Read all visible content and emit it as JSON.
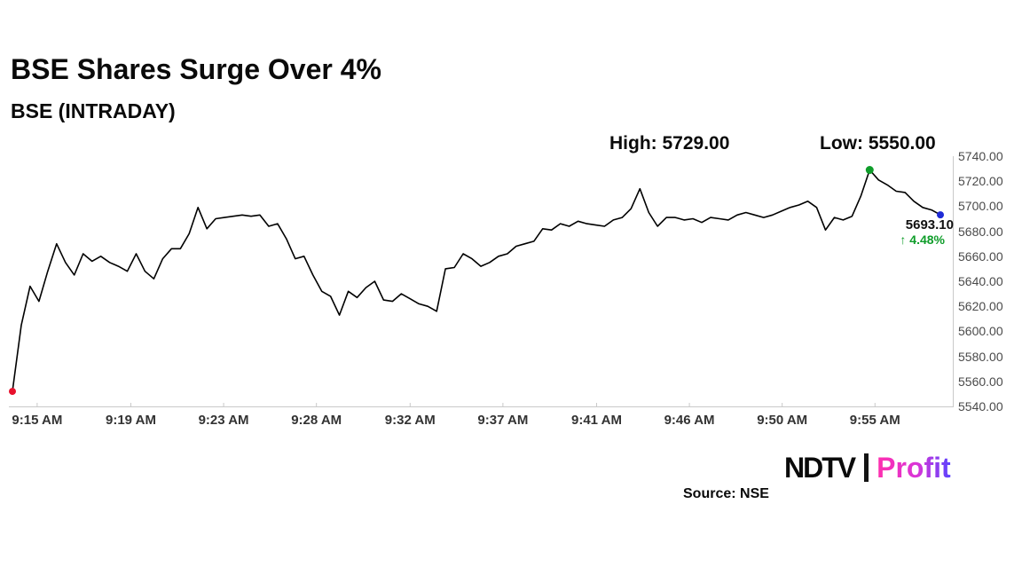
{
  "header": {
    "title": "BSE Shares Surge Over 4%",
    "subtitle": "BSE (INTRADAY)"
  },
  "annotations": {
    "high_label": "High: 5729.00",
    "low_label": "Low: 5550.00",
    "last_price": "5693.10",
    "change": "↑ 4.48%"
  },
  "footer": {
    "source": "Source: NSE",
    "brand_left": "NDTV",
    "brand_right": "Profit"
  },
  "colors": {
    "line": "#000000",
    "start_dot": "#e8112d",
    "high_dot": "#0f9d2a",
    "end_dot": "#1f2bd6",
    "change_green": "#0f9d2a",
    "axis": "#c9c9c9"
  },
  "chart_data": {
    "type": "line",
    "title": "BSE Shares Surge Over 4%",
    "subtitle": "BSE (INTRADAY)",
    "xlabel": "",
    "ylabel": "",
    "ylim": [
      5540,
      5740
    ],
    "grid": false,
    "legend": "none",
    "high": 5729.0,
    "low": 5550.0,
    "last": 5693.1,
    "change_pct": 4.48,
    "y_ticks": [
      "5740.00",
      "5720.00",
      "5700.00",
      "5680.00",
      "5660.00",
      "5640.00",
      "5620.00",
      "5600.00",
      "5580.00",
      "5560.00",
      "5540.00"
    ],
    "x_tick_labels": [
      "9:15 AM",
      "9:19 AM",
      "9:23 AM",
      "9:28 AM",
      "9:32 AM",
      "9:37 AM",
      "9:41 AM",
      "9:46 AM",
      "9:50 AM",
      "9:55 AM"
    ],
    "x_tick_pos": [
      2.8,
      13.4,
      23.9,
      34.4,
      45.0,
      55.5,
      66.1,
      76.6,
      87.1,
      97.6
    ],
    "values": [
      5552,
      5605,
      5636,
      5624,
      5648,
      5670,
      5655,
      5645,
      5662,
      5656,
      5660,
      5655,
      5652,
      5648,
      5662,
      5648,
      5642,
      5658,
      5666,
      5666,
      5678,
      5699,
      5682,
      5690,
      5691,
      5692,
      5693,
      5692,
      5693,
      5684,
      5686,
      5674,
      5658,
      5660,
      5645,
      5632,
      5628,
      5613,
      5632,
      5627,
      5635,
      5640,
      5625,
      5624,
      5630,
      5626,
      5622,
      5620,
      5616,
      5650,
      5651,
      5662,
      5658,
      5652,
      5655,
      5660,
      5662,
      5668,
      5670,
      5672,
      5682,
      5681,
      5686,
      5684,
      5688,
      5686,
      5685,
      5684,
      5689,
      5691,
      5698,
      5714,
      5695,
      5684,
      5691,
      5691,
      5689,
      5690,
      5687,
      5691,
      5690,
      5689,
      5693,
      5695,
      5693,
      5691,
      5693,
      5696,
      5699,
      5701,
      5704,
      5699,
      5681,
      5691,
      5689,
      5692,
      5708,
      5729,
      5721,
      5717,
      5712,
      5711,
      5704,
      5699,
      5697,
      5693.1
    ]
  }
}
